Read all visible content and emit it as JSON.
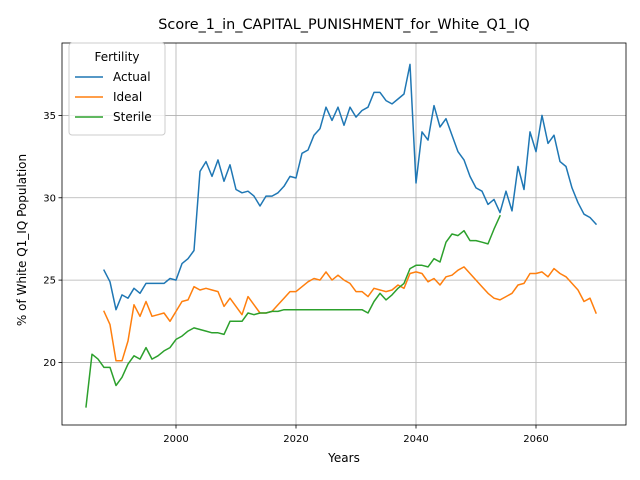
{
  "chart_data": {
    "type": "line",
    "title": "Score_1_in_CAPITAL_PUNISHMENT_for_White_Q1_IQ",
    "xlabel": "Years",
    "ylabel": "% of White Q1_IQ Population",
    "xlim": [
      1981,
      2075
    ],
    "ylim": [
      16.2,
      39.4
    ],
    "xticks": [
      2000,
      2020,
      2040,
      2060
    ],
    "yticks": [
      20,
      25,
      30,
      35
    ],
    "grid": true,
    "legend": {
      "title": "Fertility",
      "position": "top-left"
    },
    "series": [
      {
        "name": "Actual",
        "color": "#1f77b4",
        "points": [
          [
            1988,
            25.6
          ],
          [
            1989,
            24.9
          ],
          [
            1990,
            23.2
          ],
          [
            1991,
            24.1
          ],
          [
            1992,
            23.9
          ],
          [
            1993,
            24.5
          ],
          [
            1994,
            24.2
          ],
          [
            1995,
            24.8
          ],
          [
            1996,
            24.8
          ],
          [
            1997,
            24.8
          ],
          [
            1998,
            24.8
          ],
          [
            1999,
            25.1
          ],
          [
            2000,
            25.0
          ],
          [
            2001,
            26.0
          ],
          [
            2002,
            26.3
          ],
          [
            2003,
            26.8
          ],
          [
            2004,
            31.6
          ],
          [
            2005,
            32.2
          ],
          [
            2006,
            31.3
          ],
          [
            2007,
            32.3
          ],
          [
            2008,
            31.0
          ],
          [
            2009,
            32.0
          ],
          [
            2010,
            30.5
          ],
          [
            2011,
            30.3
          ],
          [
            2012,
            30.4
          ],
          [
            2013,
            30.1
          ],
          [
            2014,
            29.5
          ],
          [
            2015,
            30.1
          ],
          [
            2016,
            30.1
          ],
          [
            2017,
            30.3
          ],
          [
            2018,
            30.7
          ],
          [
            2019,
            31.3
          ],
          [
            2020,
            31.2
          ],
          [
            2021,
            32.7
          ],
          [
            2022,
            32.9
          ],
          [
            2023,
            33.8
          ],
          [
            2024,
            34.2
          ],
          [
            2025,
            35.5
          ],
          [
            2026,
            34.7
          ],
          [
            2027,
            35.5
          ],
          [
            2028,
            34.4
          ],
          [
            2029,
            35.5
          ],
          [
            2030,
            34.9
          ],
          [
            2031,
            35.3
          ],
          [
            2032,
            35.5
          ],
          [
            2033,
            36.4
          ],
          [
            2034,
            36.4
          ],
          [
            2035,
            35.9
          ],
          [
            2036,
            35.7
          ],
          [
            2037,
            36.0
          ],
          [
            2038,
            36.3
          ],
          [
            2039,
            38.1
          ],
          [
            2040,
            30.9
          ],
          [
            2041,
            34.0
          ],
          [
            2042,
            33.5
          ],
          [
            2043,
            35.6
          ],
          [
            2044,
            34.3
          ],
          [
            2045,
            34.8
          ],
          [
            2046,
            33.8
          ],
          [
            2047,
            32.8
          ],
          [
            2048,
            32.3
          ],
          [
            2049,
            31.3
          ],
          [
            2050,
            30.6
          ],
          [
            2051,
            30.4
          ],
          [
            2052,
            29.6
          ],
          [
            2053,
            29.9
          ],
          [
            2054,
            29.1
          ],
          [
            2055,
            30.4
          ],
          [
            2056,
            29.2
          ],
          [
            2057,
            31.9
          ],
          [
            2058,
            30.5
          ],
          [
            2059,
            34.0
          ],
          [
            2060,
            32.8
          ],
          [
            2061,
            35.0
          ],
          [
            2062,
            33.3
          ],
          [
            2063,
            33.8
          ],
          [
            2064,
            32.2
          ],
          [
            2065,
            31.9
          ],
          [
            2066,
            30.6
          ],
          [
            2067,
            29.7
          ],
          [
            2068,
            29.0
          ],
          [
            2069,
            28.8
          ],
          [
            2070,
            28.4
          ]
        ]
      },
      {
        "name": "Ideal",
        "color": "#ff7f0e",
        "points": [
          [
            1988,
            23.1
          ],
          [
            1989,
            22.3
          ],
          [
            1990,
            20.1
          ],
          [
            1991,
            20.1
          ],
          [
            1992,
            21.3
          ],
          [
            1993,
            23.5
          ],
          [
            1994,
            22.8
          ],
          [
            1995,
            23.7
          ],
          [
            1996,
            22.8
          ],
          [
            1997,
            22.9
          ],
          [
            1998,
            23.0
          ],
          [
            1999,
            22.5
          ],
          [
            2000,
            23.1
          ],
          [
            2001,
            23.7
          ],
          [
            2002,
            23.8
          ],
          [
            2003,
            24.6
          ],
          [
            2004,
            24.4
          ],
          [
            2005,
            24.5
          ],
          [
            2006,
            24.4
          ],
          [
            2007,
            24.3
          ],
          [
            2008,
            23.4
          ],
          [
            2009,
            23.9
          ],
          [
            2010,
            23.4
          ],
          [
            2011,
            22.9
          ],
          [
            2012,
            24.0
          ],
          [
            2013,
            23.5
          ],
          [
            2014,
            23.0
          ],
          [
            2015,
            23.0
          ],
          [
            2016,
            23.1
          ],
          [
            2017,
            23.5
          ],
          [
            2018,
            23.9
          ],
          [
            2019,
            24.3
          ],
          [
            2020,
            24.3
          ],
          [
            2021,
            24.6
          ],
          [
            2022,
            24.9
          ],
          [
            2023,
            25.1
          ],
          [
            2024,
            25.0
          ],
          [
            2025,
            25.5
          ],
          [
            2026,
            25.0
          ],
          [
            2027,
            25.3
          ],
          [
            2028,
            25.0
          ],
          [
            2029,
            24.8
          ],
          [
            2030,
            24.3
          ],
          [
            2031,
            24.3
          ],
          [
            2032,
            24.0
          ],
          [
            2033,
            24.5
          ],
          [
            2034,
            24.4
          ],
          [
            2035,
            24.3
          ],
          [
            2036,
            24.4
          ],
          [
            2037,
            24.7
          ],
          [
            2038,
            24.5
          ],
          [
            2039,
            25.4
          ],
          [
            2040,
            25.5
          ],
          [
            2041,
            25.4
          ],
          [
            2042,
            24.9
          ],
          [
            2043,
            25.1
          ],
          [
            2044,
            24.7
          ],
          [
            2045,
            25.2
          ],
          [
            2046,
            25.3
          ],
          [
            2047,
            25.6
          ],
          [
            2048,
            25.8
          ],
          [
            2049,
            25.4
          ],
          [
            2050,
            25.0
          ],
          [
            2051,
            24.6
          ],
          [
            2052,
            24.2
          ],
          [
            2053,
            23.9
          ],
          [
            2054,
            23.8
          ],
          [
            2055,
            24.0
          ],
          [
            2056,
            24.2
          ],
          [
            2057,
            24.7
          ],
          [
            2058,
            24.8
          ],
          [
            2059,
            25.4
          ],
          [
            2060,
            25.4
          ],
          [
            2061,
            25.5
          ],
          [
            2062,
            25.2
          ],
          [
            2063,
            25.7
          ],
          [
            2064,
            25.4
          ],
          [
            2065,
            25.2
          ],
          [
            2066,
            24.8
          ],
          [
            2067,
            24.4
          ],
          [
            2068,
            23.7
          ],
          [
            2069,
            23.9
          ],
          [
            2070,
            23.0
          ]
        ]
      },
      {
        "name": "Sterile",
        "color": "#2ca02c",
        "points": [
          [
            1985,
            17.3
          ],
          [
            1986,
            20.5
          ],
          [
            1987,
            20.2
          ],
          [
            1988,
            19.7
          ],
          [
            1989,
            19.7
          ],
          [
            1990,
            18.6
          ],
          [
            1991,
            19.1
          ],
          [
            1992,
            19.9
          ],
          [
            1993,
            20.4
          ],
          [
            1994,
            20.2
          ],
          [
            1995,
            20.9
          ],
          [
            1996,
            20.2
          ],
          [
            1997,
            20.4
          ],
          [
            1998,
            20.7
          ],
          [
            1999,
            20.9
          ],
          [
            2000,
            21.4
          ],
          [
            2001,
            21.6
          ],
          [
            2002,
            21.9
          ],
          [
            2003,
            22.1
          ],
          [
            2004,
            22.0
          ],
          [
            2005,
            21.9
          ],
          [
            2006,
            21.8
          ],
          [
            2007,
            21.8
          ],
          [
            2008,
            21.7
          ],
          [
            2009,
            22.5
          ],
          [
            2010,
            22.5
          ],
          [
            2011,
            22.5
          ],
          [
            2012,
            23.0
          ],
          [
            2013,
            22.9
          ],
          [
            2014,
            23.0
          ],
          [
            2015,
            23.0
          ],
          [
            2016,
            23.1
          ],
          [
            2017,
            23.1
          ],
          [
            2018,
            23.2
          ],
          [
            2019,
            23.2
          ],
          [
            2020,
            23.2
          ],
          [
            2021,
            23.2
          ],
          [
            2022,
            23.2
          ],
          [
            2023,
            23.2
          ],
          [
            2024,
            23.2
          ],
          [
            2025,
            23.2
          ],
          [
            2026,
            23.2
          ],
          [
            2027,
            23.2
          ],
          [
            2028,
            23.2
          ],
          [
            2029,
            23.2
          ],
          [
            2030,
            23.2
          ],
          [
            2031,
            23.2
          ],
          [
            2032,
            23.0
          ],
          [
            2033,
            23.7
          ],
          [
            2034,
            24.2
          ],
          [
            2035,
            23.8
          ],
          [
            2036,
            24.1
          ],
          [
            2037,
            24.5
          ],
          [
            2038,
            24.8
          ],
          [
            2039,
            25.7
          ],
          [
            2040,
            25.9
          ],
          [
            2041,
            25.9
          ],
          [
            2042,
            25.8
          ],
          [
            2043,
            26.3
          ],
          [
            2044,
            26.1
          ],
          [
            2045,
            27.3
          ],
          [
            2046,
            27.8
          ],
          [
            2047,
            27.7
          ],
          [
            2048,
            28.0
          ],
          [
            2049,
            27.4
          ],
          [
            2050,
            27.4
          ],
          [
            2051,
            27.3
          ],
          [
            2052,
            27.2
          ],
          [
            2053,
            28.1
          ],
          [
            2054,
            28.9
          ]
        ]
      }
    ]
  }
}
